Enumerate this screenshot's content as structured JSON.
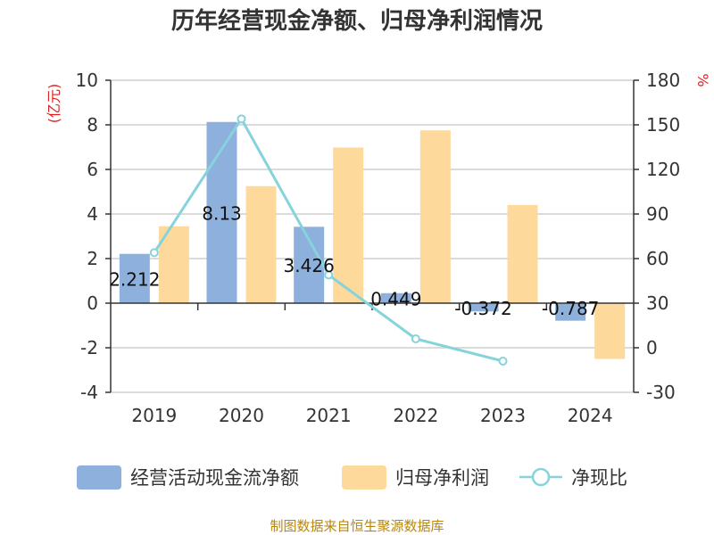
{
  "chart_data": {
    "type": "bar",
    "title": "历年经营现金净额、归母净利润情况",
    "categories": [
      "2019",
      "2020",
      "2021",
      "2022",
      "2023",
      "2024"
    ],
    "left_unit": "(亿元)",
    "right_unit": "%",
    "left_ylim": [
      -4,
      10
    ],
    "left_ticks": [
      -4,
      -2,
      0,
      2,
      4,
      6,
      8,
      10
    ],
    "right_ylim": [
      -30,
      180
    ],
    "right_ticks": [
      -30,
      0,
      30,
      60,
      90,
      120,
      150,
      180
    ],
    "series": [
      {
        "name": "经营活动现金流净额",
        "type": "bar",
        "axis": "left",
        "color": "#8eb0dc",
        "values": [
          2.212,
          8.13,
          3.426,
          0.449,
          -0.372,
          -0.787
        ],
        "labels": [
          "2.212",
          "8.13",
          "3.426",
          "0.449",
          "-0.372",
          "-0.787"
        ]
      },
      {
        "name": "归母净利润",
        "type": "bar",
        "axis": "left",
        "color": "#fdd99b",
        "values": [
          3.45,
          5.25,
          6.98,
          7.75,
          4.4,
          -2.5
        ]
      },
      {
        "name": "净现比",
        "type": "line",
        "axis": "right",
        "color": "#86d3dc",
        "values": [
          64,
          154,
          49,
          6,
          -9,
          null
        ]
      }
    ],
    "source": "制图数据来自恒生聚源数据库"
  }
}
